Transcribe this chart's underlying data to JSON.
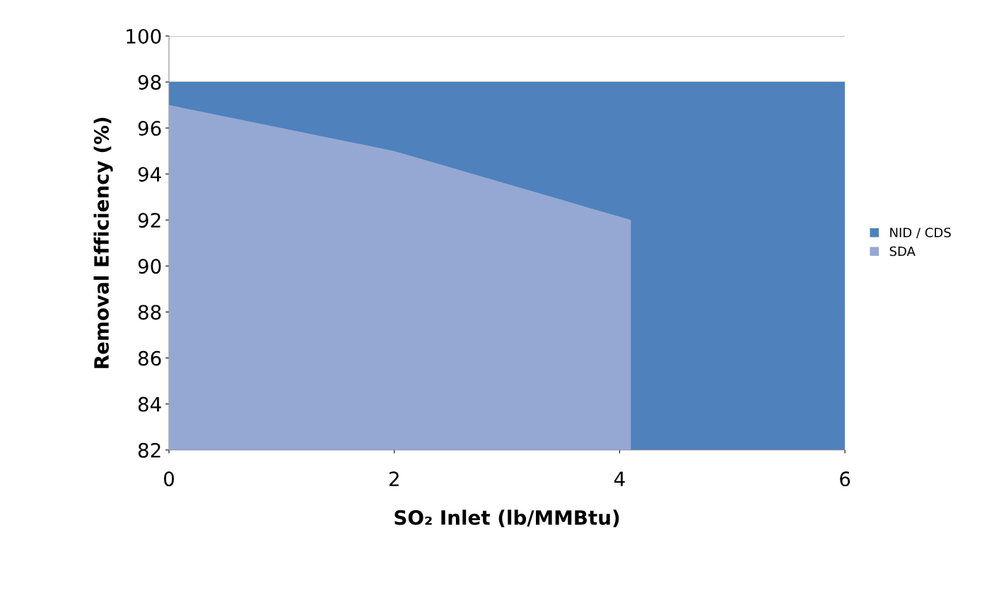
{
  "chart_data": {
    "type": "area",
    "xlabel": "SO₂ Inlet (lb/MMBtu)",
    "ylabel": "Removal Efficiency (%)",
    "series": [
      {
        "name": "NID / CDS",
        "color": "#4f81bd",
        "x": [
          0,
          6
        ],
        "values": [
          98,
          98
        ]
      },
      {
        "name": "SDA",
        "color": "#95a8d3",
        "x": [
          0,
          2,
          4.1,
          4.1
        ],
        "values": [
          97,
          95,
          92,
          82
        ]
      }
    ],
    "xlim": [
      0,
      6
    ],
    "xticks": [
      0,
      2,
      4,
      6
    ],
    "ylim": [
      82,
      100
    ],
    "yticks": [
      82,
      84,
      86,
      88,
      90,
      92,
      94,
      96,
      98,
      100
    ],
    "grid": "y",
    "legend": "right"
  }
}
